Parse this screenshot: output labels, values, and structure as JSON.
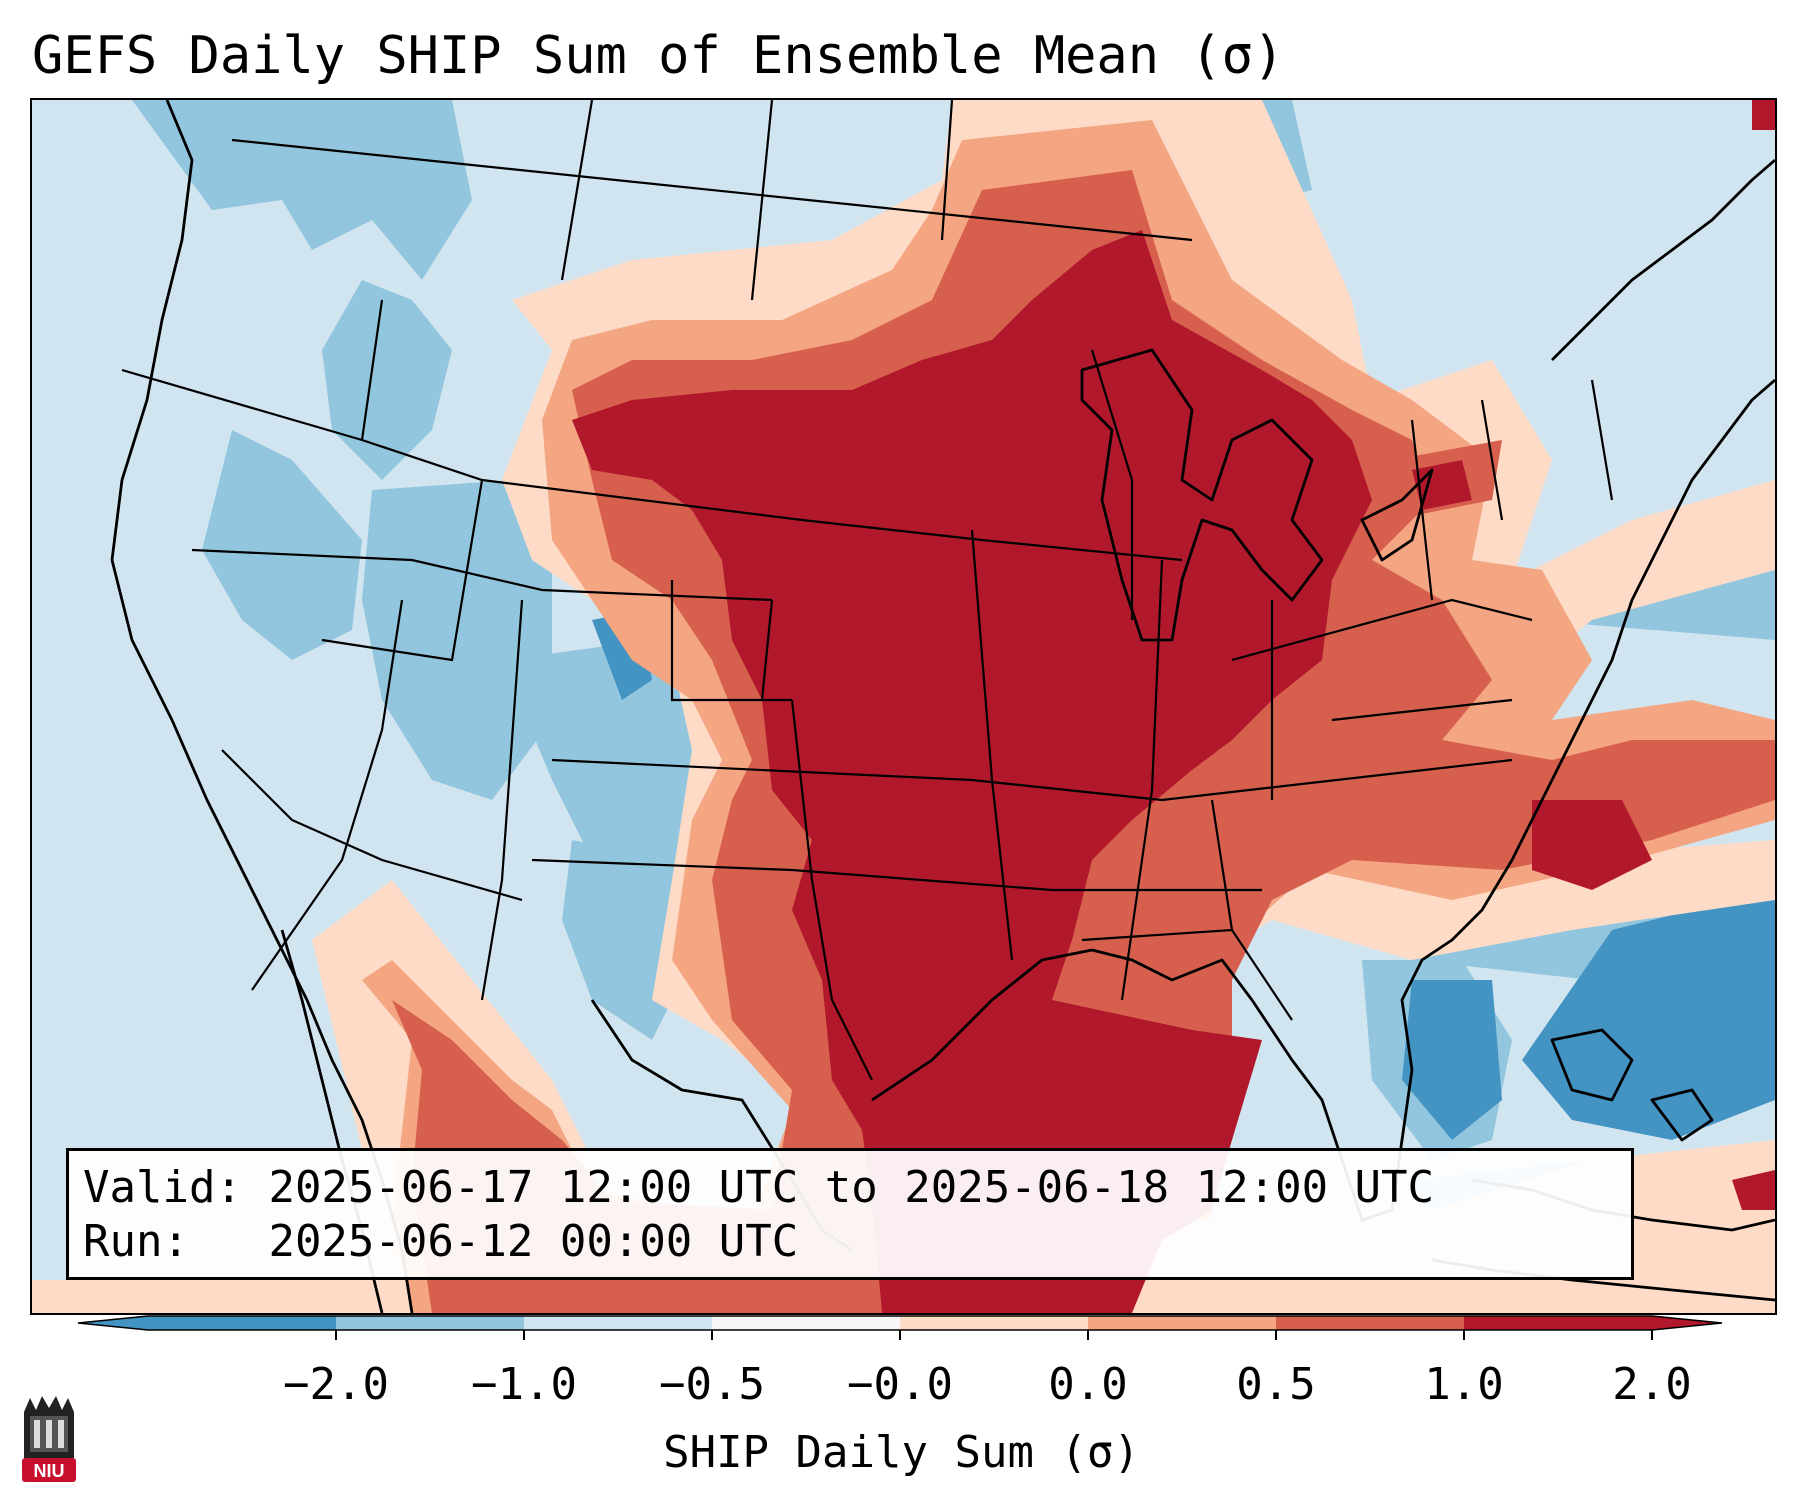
{
  "title": "GEFS Daily SHIP Sum of Ensemble Mean (σ)",
  "info": {
    "valid_label": "Valid:",
    "valid_value": "2025-06-17 12:00 UTC to 2025-06-18 12:00 UTC",
    "run_label": "Run:",
    "run_value": "2025-06-12 00:00 UTC"
  },
  "colorbar": {
    "label": "SHIP Daily Sum (σ)",
    "ticks": [
      "−2.0",
      "−1.0",
      "−0.5",
      "−0.0",
      "0.0",
      "0.5",
      "1.0",
      "2.0"
    ],
    "colors": [
      "#4393c3",
      "#92c5de",
      "#d1e5f0",
      "#f7f7f7",
      "#fddbc7",
      "#f4a582",
      "#d6604d",
      "#b2182b"
    ]
  },
  "logo": {
    "text": "NIU",
    "color": "#c8102e"
  }
}
